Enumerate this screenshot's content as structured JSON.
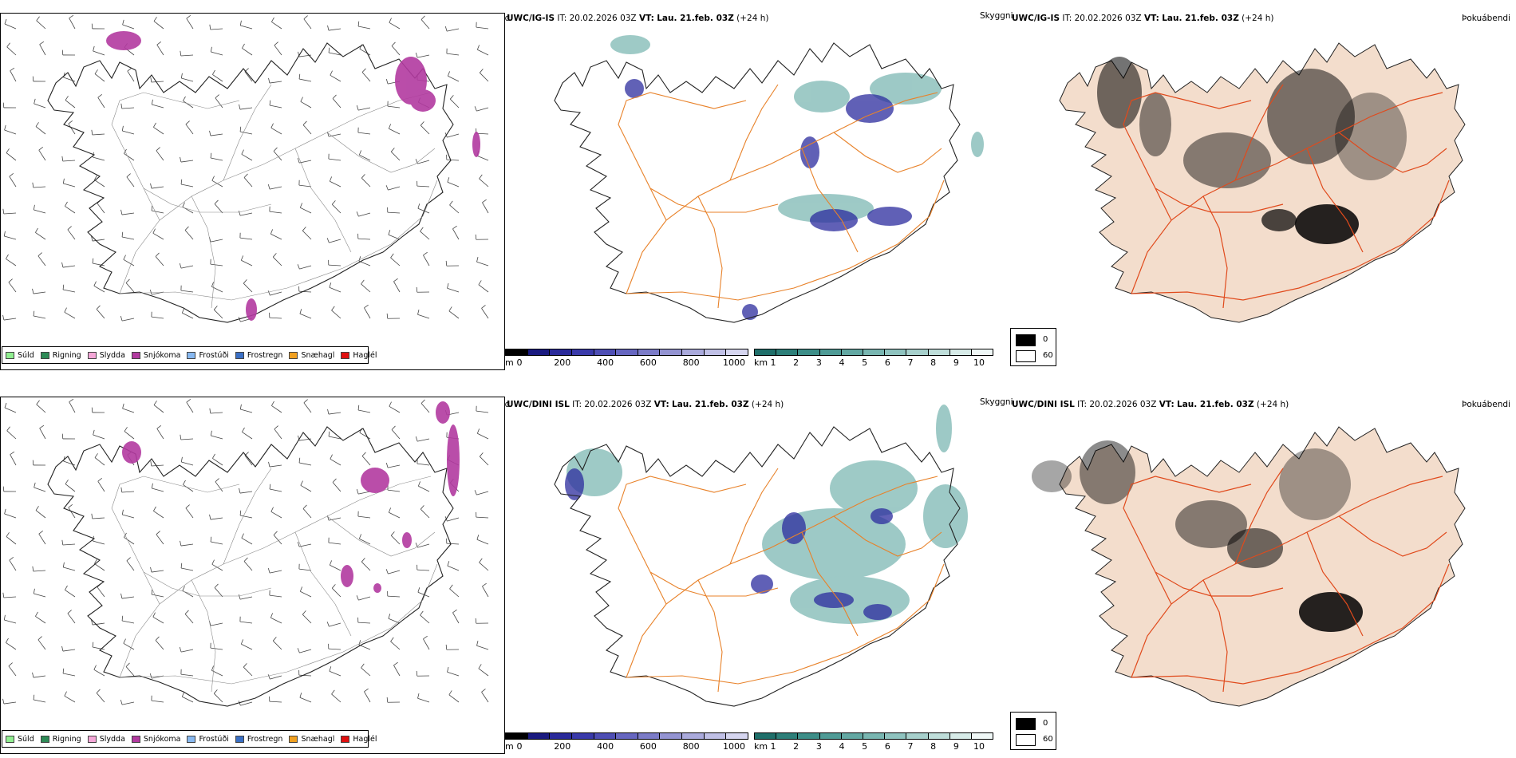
{
  "rows": [
    {
      "model": "UWC/IG-IS",
      "it_label": "IT:",
      "it_value": "20.02.2026 03Z",
      "vt_label": "VT:",
      "vt_value": "Lau. 21.feb. 03Z",
      "lead": "(+24 h)"
    },
    {
      "model": "UWC/DINI ISL",
      "it_label": "IT:",
      "it_value": "20.02.2026 03Z",
      "vt_label": "VT:",
      "vt_value": "Lau. 21.feb. 03Z",
      "lead": "(+24 h)"
    }
  ],
  "panel_titles": {
    "precip_type": "Úrkomutegund",
    "visibility": "Skyggni",
    "fog": "Þokuábendi"
  },
  "precip_legend": [
    {
      "label": "Súld",
      "color": "#90ee90"
    },
    {
      "label": "Rigning",
      "color": "#2e8b57"
    },
    {
      "label": "Slydda",
      "color": "#f4a6d7"
    },
    {
      "label": "Snjókoma",
      "color": "#b23aa0"
    },
    {
      "label": "Frostúði",
      "color": "#87b8f0"
    },
    {
      "label": "Frostregn",
      "color": "#3a6fc4"
    },
    {
      "label": "Snæhagl",
      "color": "#f0a020"
    },
    {
      "label": "Haglél",
      "color": "#e01010"
    }
  ],
  "cloud_base_scale": {
    "unit": "m",
    "ticks": [
      "0",
      "200",
      "400",
      "600",
      "800",
      "1000"
    ],
    "colors": [
      "#000000",
      "#1a1a80",
      "#2a2a9a",
      "#3a3aaa",
      "#4e4eb4",
      "#6666c0",
      "#7c7cc8",
      "#9494d2",
      "#aaaadc",
      "#c0c0e6",
      "#d6d6f0"
    ]
  },
  "visibility_scale": {
    "unit": "km",
    "ticks": [
      "1",
      "2",
      "3",
      "4",
      "5",
      "6",
      "7",
      "8",
      "9",
      "10"
    ],
    "colors": [
      "#1f6f6a",
      "#2d7f79",
      "#3d8e88",
      "#4f9b96",
      "#63a8a3",
      "#79b6b1",
      "#8fc3bf",
      "#a7d0cc",
      "#bfdeda",
      "#d7ebe8",
      "#f0f8f7"
    ]
  },
  "fog_legend": {
    "high": "0",
    "low": "60"
  },
  "colors": {
    "coast": "#222222",
    "roads": "#e8822a",
    "roads_fog": "#e04a1c",
    "land_fog": "#f3ddcc",
    "rivers": "#7f8fe0",
    "snow": "#b23aa0",
    "low_cloud": "#2c2c9e",
    "visibility": "#4e9e98"
  }
}
